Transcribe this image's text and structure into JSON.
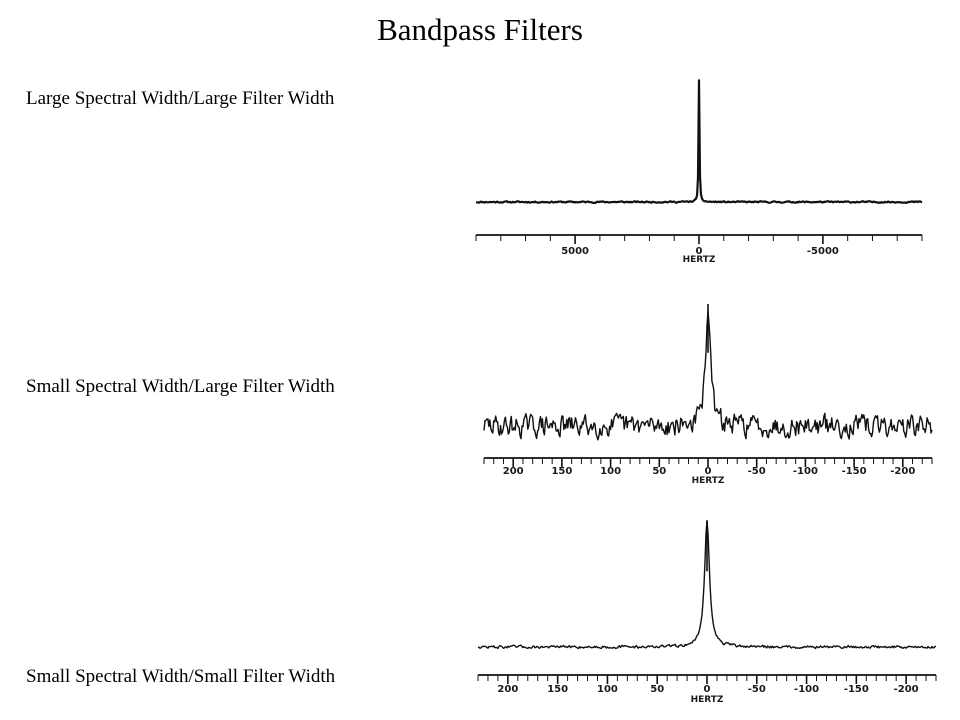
{
  "title": "Bandpass Filters",
  "panels": [
    {
      "label": "Large Spectral Width/Large Filter Width"
    },
    {
      "label": "Small Spectral Width/Large Filter Width"
    },
    {
      "label": "Small Spectral Width/Small Filter Width"
    }
  ],
  "chart_data": [
    {
      "type": "line",
      "xlabel": "HERTZ",
      "x_range": [
        9000,
        -9000
      ],
      "x_ticks": [
        5000,
        0,
        -5000
      ],
      "x_tick_labels": [
        "5000",
        "0",
        "-5000"
      ],
      "minor_tick_step": 1000,
      "peak": {
        "x": 0,
        "relative_height": 1.0,
        "half_width": 20
      },
      "noise_level": 0.01,
      "grid": false
    },
    {
      "type": "line",
      "xlabel": "HERTZ",
      "x_range": [
        230,
        -230
      ],
      "x_ticks": [
        200,
        150,
        100,
        50,
        0,
        -50,
        -100,
        -150,
        -200
      ],
      "x_tick_labels": [
        "200",
        "150",
        "100",
        "50",
        "0",
        "-50",
        "-100",
        "-150",
        "-200"
      ],
      "minor_tick_step": 10,
      "peak": {
        "x": 0,
        "relative_height": 1.0,
        "half_width": 3
      },
      "noise_level": 0.15,
      "grid": false
    },
    {
      "type": "line",
      "xlabel": "HERTZ",
      "x_range": [
        230,
        -230
      ],
      "x_ticks": [
        200,
        150,
        100,
        50,
        0,
        -50,
        -100,
        -150,
        -200
      ],
      "x_tick_labels": [
        "200",
        "150",
        "100",
        "50",
        "0",
        "-50",
        "-100",
        "-150",
        "-200"
      ],
      "minor_tick_step": 10,
      "peak": {
        "x": 0,
        "relative_height": 1.0,
        "half_width": 3
      },
      "noise_level": 0.02,
      "grid": false
    }
  ]
}
